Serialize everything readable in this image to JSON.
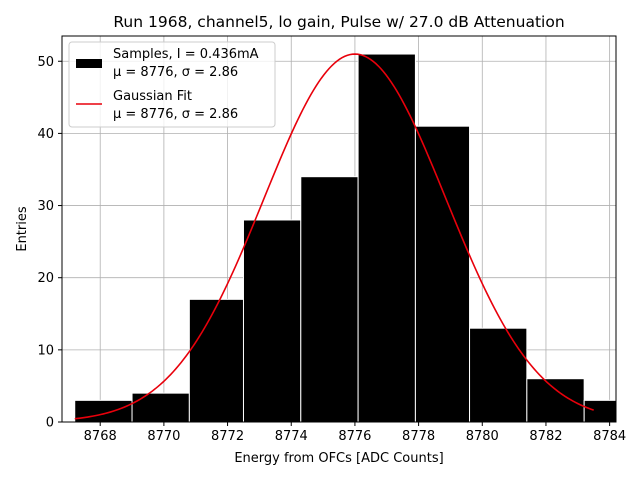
{
  "chart_data": {
    "type": "bar",
    "title": "Run 1968, channel5, lo gain, Pulse w/ 27.0 dB Attenuation",
    "xlabel": "Energy from OFCs [ADC Counts]",
    "ylabel": "Entries",
    "xlim": [
      8766.8,
      8784.2
    ],
    "ylim": [
      0,
      53.5
    ],
    "xticks": [
      8768,
      8770,
      8772,
      8774,
      8776,
      8778,
      8780,
      8782,
      8784
    ],
    "yticks": [
      0,
      10,
      20,
      30,
      40,
      50
    ],
    "grid": true,
    "legend_position": "top-left",
    "histogram": {
      "name": "Samples, I = 0.436mA",
      "stats": "μ = 8776, σ = 2.86",
      "color": "#000000",
      "edgecolor": "#ffffff",
      "bins": [
        {
          "x0": 8767.2,
          "x1": 8769.0,
          "value": 3
        },
        {
          "x0": 8769.0,
          "x1": 8770.8,
          "value": 4
        },
        {
          "x0": 8770.8,
          "x1": 8772.5,
          "value": 17
        },
        {
          "x0": 8772.5,
          "x1": 8774.3,
          "value": 28
        },
        {
          "x0": 8774.3,
          "x1": 8776.1,
          "value": 34
        },
        {
          "x0": 8776.1,
          "x1": 8777.9,
          "value": 51
        },
        {
          "x0": 8777.9,
          "x1": 8779.6,
          "value": 41
        },
        {
          "x0": 8779.6,
          "x1": 8781.4,
          "value": 13
        },
        {
          "x0": 8781.4,
          "x1": 8783.2,
          "value": 6
        },
        {
          "x0": 8783.2,
          "x1": 8785.0,
          "value": 3
        }
      ]
    },
    "fit": {
      "name": "Gaussian Fit",
      "stats": "μ = 8776, σ = 2.86",
      "color": "#e8000b",
      "mu": 8776,
      "sigma": 2.86,
      "amplitude": 51,
      "x_range": [
        8767.2,
        8783.5
      ]
    }
  }
}
